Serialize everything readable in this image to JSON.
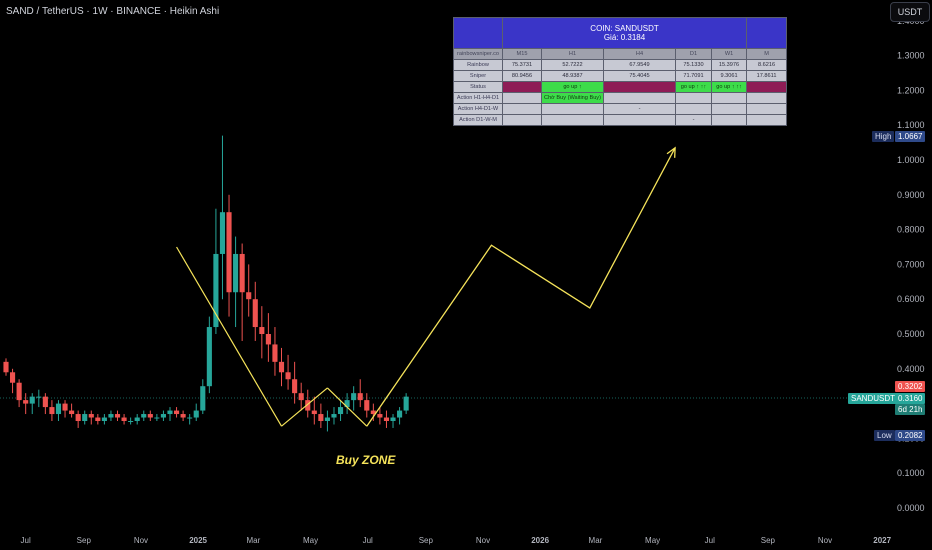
{
  "header": {
    "title": "SAND / TetherUS · 1W · BINANCE · Heikin Ashi",
    "currency_button": "USDT"
  },
  "colors": {
    "up": "#26a69a",
    "down": "#ef5350",
    "projection": "#f5e35a",
    "price_line": "#26a69a",
    "low_box": "#2f4a8a",
    "high_box": "#2f4a8a"
  },
  "axis": {
    "y_ticks": [
      "0.0000",
      "0.1000",
      "0.2000",
      "0.3000",
      "0.4000",
      "0.5000",
      "0.6000",
      "0.7000",
      "0.8000",
      "0.9000",
      "1.0000",
      "1.1000",
      "1.2000",
      "1.3000",
      "1.4000"
    ],
    "x_ticks": [
      "Jul",
      "Sep",
      "Nov",
      "2025",
      "Mar",
      "May",
      "Jul",
      "Sep",
      "Nov",
      "2026",
      "Mar",
      "May",
      "Jul",
      "Sep",
      "Nov",
      "2027"
    ]
  },
  "price_labels": {
    "high_label": "High",
    "high_value": "1.0667",
    "low_label": "Low",
    "low_value": "0.2082",
    "symbol": "SANDUSDT",
    "last_close": "0.3160",
    "countdown": "6d 21h",
    "upper": "0.3202"
  },
  "annotation": {
    "buy_zone": "Buy ZONE"
  },
  "table": {
    "coin_title": "COIN: SANDUSDT",
    "price_title": "Giá: 0.3184",
    "header": [
      "rainbowsniper.co",
      "M15",
      "H1",
      "H4",
      "D1",
      "W1",
      "M"
    ],
    "rows": [
      {
        "label": "Rainbow",
        "cells": [
          "75.3731",
          "52.7222",
          "67.9549",
          "75.1330",
          "15.3976",
          "8.6216"
        ]
      },
      {
        "label": "Sniper",
        "cells": [
          "80.9456",
          "48.9387",
          "75.4045",
          "71.7091",
          "9.3061",
          "17.8611"
        ]
      },
      {
        "label": "Status",
        "cells": [
          "",
          "go up ↑",
          "",
          "go up ↑ ↑↑",
          "go up ↑ ↑↑",
          ""
        ]
      },
      {
        "label": "Action H1-H4-D1",
        "cells": [
          "",
          "Chờ Buy (Waiting Buy)",
          "",
          "",
          "",
          ""
        ]
      },
      {
        "label": "Action H4-D1-W",
        "cells": [
          "",
          "",
          "-",
          "",
          "",
          ""
        ]
      },
      {
        "label": "Action D1-W-M",
        "cells": [
          "",
          "",
          "",
          "-",
          "",
          ""
        ]
      }
    ]
  },
  "chart_data": {
    "type": "candlestick",
    "title": "SAND / TetherUS · 1W · BINANCE · Heikin Ashi",
    "style": "Heikin Ashi",
    "interval": "1W",
    "y_range": [
      0.0,
      1.4
    ],
    "x_range": [
      "2024-06-10",
      "2027-01-04"
    ],
    "last_price": 0.316,
    "high": 1.0667,
    "low": 0.2082,
    "projection_path": [
      {
        "date": "2025-06-30",
        "price": 0.235
      },
      {
        "date": "2025-11-10",
        "price": 0.755
      },
      {
        "date": "2026-02-23",
        "price": 0.575
      },
      {
        "date": "2026-05-25",
        "price": 1.035
      }
    ],
    "trend_lines": [
      [
        {
          "date": "2024-12-09",
          "price": 0.75
        },
        {
          "date": "2025-03-31",
          "price": 0.235
        }
      ],
      [
        {
          "date": "2025-03-31",
          "price": 0.235
        },
        {
          "date": "2025-05-19",
          "price": 0.345
        }
      ],
      [
        {
          "date": "2025-05-19",
          "price": 0.345
        },
        {
          "date": "2025-06-30",
          "price": 0.235
        }
      ]
    ],
    "candles": [
      [
        0.42,
        0.43,
        0.38,
        0.39
      ],
      [
        0.39,
        0.4,
        0.33,
        0.36
      ],
      [
        0.36,
        0.37,
        0.29,
        0.31
      ],
      [
        0.31,
        0.33,
        0.27,
        0.3
      ],
      [
        0.3,
        0.33,
        0.27,
        0.32
      ],
      [
        0.32,
        0.34,
        0.29,
        0.32
      ],
      [
        0.32,
        0.33,
        0.27,
        0.29
      ],
      [
        0.29,
        0.31,
        0.25,
        0.27
      ],
      [
        0.27,
        0.31,
        0.25,
        0.3
      ],
      [
        0.3,
        0.31,
        0.26,
        0.28
      ],
      [
        0.28,
        0.3,
        0.26,
        0.27
      ],
      [
        0.27,
        0.28,
        0.23,
        0.25
      ],
      [
        0.25,
        0.28,
        0.24,
        0.27
      ],
      [
        0.27,
        0.28,
        0.24,
        0.26
      ],
      [
        0.26,
        0.27,
        0.24,
        0.25
      ],
      [
        0.25,
        0.27,
        0.24,
        0.26
      ],
      [
        0.26,
        0.28,
        0.25,
        0.27
      ],
      [
        0.27,
        0.28,
        0.25,
        0.26
      ],
      [
        0.26,
        0.27,
        0.24,
        0.25
      ],
      [
        0.25,
        0.26,
        0.24,
        0.25
      ],
      [
        0.25,
        0.27,
        0.24,
        0.26
      ],
      [
        0.26,
        0.28,
        0.25,
        0.27
      ],
      [
        0.27,
        0.28,
        0.25,
        0.26
      ],
      [
        0.26,
        0.27,
        0.25,
        0.26
      ],
      [
        0.26,
        0.28,
        0.25,
        0.27
      ],
      [
        0.27,
        0.29,
        0.25,
        0.28
      ],
      [
        0.28,
        0.29,
        0.26,
        0.27
      ],
      [
        0.27,
        0.28,
        0.25,
        0.26
      ],
      [
        0.26,
        0.27,
        0.24,
        0.26
      ],
      [
        0.26,
        0.3,
        0.25,
        0.28
      ],
      [
        0.28,
        0.37,
        0.27,
        0.35
      ],
      [
        0.35,
        0.55,
        0.33,
        0.52
      ],
      [
        0.52,
        0.86,
        0.5,
        0.73
      ],
      [
        0.73,
        1.07,
        0.6,
        0.85
      ],
      [
        0.85,
        0.9,
        0.55,
        0.62
      ],
      [
        0.62,
        0.78,
        0.52,
        0.73
      ],
      [
        0.73,
        0.76,
        0.48,
        0.62
      ],
      [
        0.62,
        0.7,
        0.55,
        0.6
      ],
      [
        0.6,
        0.65,
        0.48,
        0.52
      ],
      [
        0.52,
        0.58,
        0.43,
        0.5
      ],
      [
        0.5,
        0.56,
        0.42,
        0.47
      ],
      [
        0.47,
        0.52,
        0.38,
        0.42
      ],
      [
        0.42,
        0.46,
        0.35,
        0.39
      ],
      [
        0.39,
        0.44,
        0.34,
        0.37
      ],
      [
        0.37,
        0.42,
        0.3,
        0.33
      ],
      [
        0.33,
        0.36,
        0.28,
        0.31
      ],
      [
        0.31,
        0.34,
        0.26,
        0.28
      ],
      [
        0.28,
        0.32,
        0.24,
        0.27
      ],
      [
        0.27,
        0.3,
        0.23,
        0.25
      ],
      [
        0.25,
        0.28,
        0.22,
        0.26
      ],
      [
        0.26,
        0.29,
        0.24,
        0.27
      ],
      [
        0.27,
        0.31,
        0.25,
        0.29
      ],
      [
        0.29,
        0.33,
        0.27,
        0.31
      ],
      [
        0.31,
        0.35,
        0.28,
        0.33
      ],
      [
        0.33,
        0.37,
        0.29,
        0.31
      ],
      [
        0.31,
        0.33,
        0.26,
        0.28
      ],
      [
        0.28,
        0.3,
        0.25,
        0.27
      ],
      [
        0.27,
        0.29,
        0.24,
        0.26
      ],
      [
        0.26,
        0.28,
        0.23,
        0.25
      ],
      [
        0.25,
        0.27,
        0.23,
        0.26
      ],
      [
        0.26,
        0.29,
        0.24,
        0.28
      ],
      [
        0.28,
        0.33,
        0.27,
        0.32
      ]
    ]
  }
}
